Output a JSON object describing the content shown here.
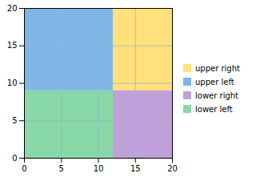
{
  "chart_data": {
    "type": "rect",
    "series": [
      {
        "name": "upper right",
        "color": "#FFE07A",
        "x": [
          12,
          20
        ],
        "y": [
          9,
          20
        ]
      },
      {
        "name": "upper left",
        "color": "#7EB6E8",
        "x": [
          0,
          12
        ],
        "y": [
          9,
          20
        ]
      },
      {
        "name": "lower right",
        "color": "#C0A0D8",
        "x": [
          12,
          20
        ],
        "y": [
          0,
          9
        ]
      },
      {
        "name": "lower left",
        "color": "#88D8A8",
        "x": [
          0,
          12
        ],
        "y": [
          0,
          9
        ]
      }
    ],
    "xlim": [
      0,
      20
    ],
    "ylim": [
      0,
      20
    ],
    "xticks": [
      0,
      5,
      10,
      15,
      20
    ],
    "yticks": [
      0,
      5,
      10,
      15,
      20
    ],
    "grid": true,
    "legend": "right"
  }
}
